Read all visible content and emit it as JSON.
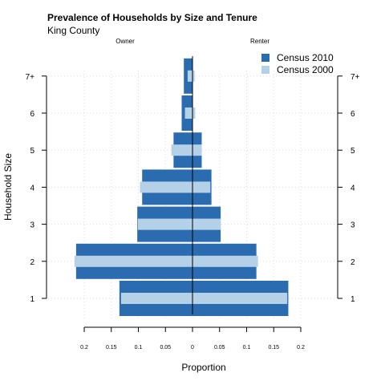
{
  "chart_data": {
    "type": "bar",
    "orientation": "horizontal-pyramid",
    "title": "Prevalence of Households by Size and Tenure",
    "subtitle": "King County",
    "group_labels": [
      "Owner",
      "Renter"
    ],
    "categories": [
      "1",
      "2",
      "3",
      "4",
      "5",
      "6",
      "7+"
    ],
    "xlabel": "Proportion",
    "ylabel": "Household Size",
    "xlim": [
      -0.2,
      0.2
    ],
    "xticks": [
      -0.2,
      -0.15,
      -0.1,
      -0.05,
      0,
      0.05,
      0.1,
      0.15,
      0.2
    ],
    "xtick_labels": [
      "0.2",
      "0.15",
      "0.1",
      "0.05",
      "0",
      "0.05",
      "0.1",
      "0.15",
      "0.2"
    ],
    "grid": true,
    "legend_position": "top-right",
    "series": [
      {
        "name": "Census 2010",
        "color": "#2b6cb0",
        "owner": [
          0.135,
          0.215,
          0.102,
          0.093,
          0.035,
          0.02,
          0.016
        ],
        "renter": [
          0.177,
          0.118,
          0.052,
          0.035,
          0.017,
          0.0,
          0.0
        ]
      },
      {
        "name": "Census 2000",
        "color": "#b4d1e7",
        "owner": [
          0.132,
          0.218,
          0.101,
          0.097,
          0.039,
          0.014,
          0.009
        ],
        "renter": [
          0.175,
          0.121,
          0.052,
          0.033,
          0.017,
          0.005,
          0.004
        ]
      }
    ]
  }
}
